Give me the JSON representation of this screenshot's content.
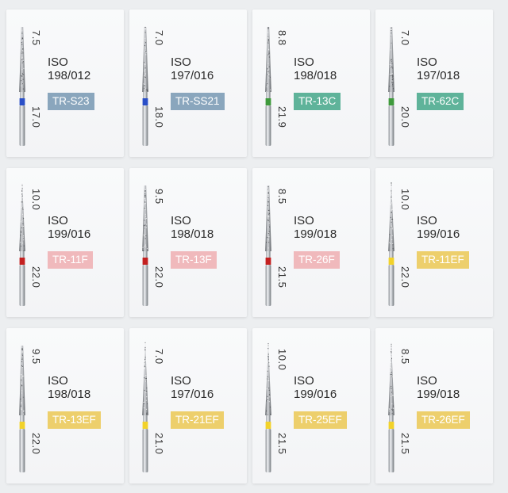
{
  "items": [
    {
      "iso": "ISO",
      "spec": "198/012",
      "code": "TR-S23",
      "top": "7.5",
      "bottom": "17.0",
      "band": "#2a4fc8",
      "tag": "#8aa6bd",
      "tip": "tapered-flat"
    },
    {
      "iso": "ISO",
      "spec": "197/016",
      "code": "TR-SS21",
      "top": "7.0",
      "bottom": "18.0",
      "band": "#2a4fc8",
      "tag": "#8aa6bd",
      "tip": "tapered-flat"
    },
    {
      "iso": "ISO",
      "spec": "198/018",
      "code": "TR-13C",
      "top": "8.8",
      "bottom": "21.9",
      "band": "#3f9a3c",
      "tag": "#5fb39a",
      "tip": "tapered-flat"
    },
    {
      "iso": "ISO",
      "spec": "197/018",
      "code": "TR-62C",
      "top": "7.0",
      "bottom": "20.0",
      "band": "#3f9a3c",
      "tag": "#5fb39a",
      "tip": "tapered-flat"
    },
    {
      "iso": "ISO",
      "spec": "199/016",
      "code": "TR-11F",
      "top": "10.0",
      "bottom": "22.0",
      "band": "#c42020",
      "tag": "#f0b9bc",
      "tip": "pointed"
    },
    {
      "iso": "ISO",
      "spec": "198/018",
      "code": "TR-13F",
      "top": "9.5",
      "bottom": "22.0",
      "band": "#c42020",
      "tag": "#f0b9bc",
      "tip": "tapered-flat"
    },
    {
      "iso": "ISO",
      "spec": "199/018",
      "code": "TR-26F",
      "top": "8.5",
      "bottom": "21.5",
      "band": "#c42020",
      "tag": "#f0b9bc",
      "tip": "tapered-flat"
    },
    {
      "iso": "ISO",
      "spec": "199/016",
      "code": "TR-11EF",
      "top": "10.0",
      "bottom": "22.0",
      "band": "#f2d22a",
      "tag": "#edcf6c",
      "tip": "pointed"
    },
    {
      "iso": "ISO",
      "spec": "198/018",
      "code": "TR-13EF",
      "top": "9.5",
      "bottom": "22.0",
      "band": "#f2d22a",
      "tag": "#edcf6c",
      "tip": "tapered-flat"
    },
    {
      "iso": "ISO",
      "spec": "197/016",
      "code": "TR-21EF",
      "top": "7.0",
      "bottom": "21.0",
      "band": "#f2d22a",
      "tag": "#edcf6c",
      "tip": "pointed"
    },
    {
      "iso": "ISO",
      "spec": "199/016",
      "code": "TR-25EF",
      "top": "10.0",
      "bottom": "21.5",
      "band": "#f2d22a",
      "tag": "#edcf6c",
      "tip": "pointed"
    },
    {
      "iso": "ISO",
      "spec": "199/018",
      "code": "TR-26EF",
      "top": "8.5",
      "bottom": "21.5",
      "band": "#f2d22a",
      "tag": "#edcf6c",
      "tip": "pointed"
    }
  ]
}
